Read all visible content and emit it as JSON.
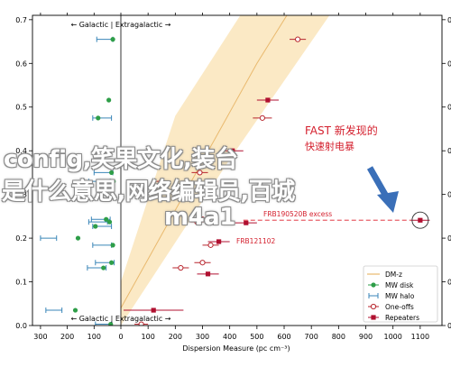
{
  "colors": {
    "dmz_fill": "#fbe8c2",
    "dmz_line": "#e9b96e",
    "mw_disk": "#2e9e48",
    "mw_halo": "#3a86b8",
    "one_off": "#b8262e",
    "repeater": "#b01030",
    "annotation": "#d4202e",
    "arrow": "#3a6fb8"
  },
  "overlay": {
    "line1": "config,笑果文化,装台",
    "line2": "是什么意思,网络编辑员,百城",
    "line3": "m4a1"
  },
  "chart_data": {
    "type": "scatter",
    "xlabel": "Dispersion Measure (pc cm⁻³)",
    "ylabel": "",
    "xlim": [
      -330,
      1180
    ],
    "ylim": [
      0,
      0.71
    ],
    "x_scale": "symlog",
    "xticks": [
      -300,
      -200,
      -100,
      0,
      100,
      200,
      300,
      400,
      500,
      600,
      700,
      800,
      900,
      1000,
      1100
    ],
    "xtick_labels": [
      "300",
      "200",
      "100",
      "0",
      "100",
      "200",
      "300",
      "400",
      "500",
      "600",
      "700",
      "800",
      "900",
      "1000",
      "1100"
    ],
    "yticks": [
      0.0,
      0.1,
      0.2,
      0.3,
      0.4,
      0.5,
      0.6,
      0.7
    ],
    "ytick_labels": [
      "0.0",
      "0.1",
      "0.2",
      "0.3",
      "0.4",
      "0.5",
      "0.6",
      "0.7"
    ],
    "top_label": "← Galactic | Extragalactic →",
    "bottom_label": "← Galactic | Extragalactic →",
    "legend": {
      "position": "lower-right",
      "entries": [
        "DM-z",
        "MW disk",
        "MW halo",
        "One-offs",
        "Repeaters"
      ]
    },
    "mw_disk": [
      {
        "dm": -30,
        "y": 0.655
      },
      {
        "dm": -45,
        "y": 0.516
      },
      {
        "dm": -85,
        "y": 0.475
      },
      {
        "dm": -35,
        "y": 0.35
      },
      {
        "dm": -28,
        "y": 0.33
      },
      {
        "dm": -55,
        "y": 0.243
      },
      {
        "dm": -42,
        "y": 0.237
      },
      {
        "dm": -95,
        "y": 0.227
      },
      {
        "dm": -160,
        "y": 0.2
      },
      {
        "dm": -30,
        "y": 0.184
      },
      {
        "dm": -35,
        "y": 0.144
      },
      {
        "dm": -65,
        "y": 0.132
      },
      {
        "dm": -170,
        "y": 0.035
      },
      {
        "dm": -38,
        "y": 0.003
      }
    ],
    "mw_halo": [
      {
        "dm": -60,
        "xerr": 30,
        "y": 0.655
      },
      {
        "dm": -70,
        "xerr": 35,
        "y": 0.475
      },
      {
        "dm": -65,
        "xerr": 35,
        "y": 0.35
      },
      {
        "dm": -80,
        "xerr": 40,
        "y": 0.33
      },
      {
        "dm": -75,
        "xerr": 35,
        "y": 0.243
      },
      {
        "dm": -85,
        "xerr": 35,
        "y": 0.237
      },
      {
        "dm": -70,
        "xerr": 35,
        "y": 0.227
      },
      {
        "dm": -270,
        "xerr": 30,
        "y": 0.2
      },
      {
        "dm": -70,
        "xerr": 35,
        "y": 0.184
      },
      {
        "dm": -60,
        "xerr": 35,
        "y": 0.144
      },
      {
        "dm": -90,
        "xerr": 35,
        "y": 0.132
      },
      {
        "dm": -250,
        "xerr": 30,
        "y": 0.035
      },
      {
        "dm": -65,
        "xerr": 30,
        "y": 0.003
      }
    ],
    "one_offs": [
      {
        "dm": 650,
        "xerr": 30,
        "y": 0.655
      },
      {
        "dm": 520,
        "xerr": 35,
        "y": 0.475
      },
      {
        "dm": 290,
        "xerr": 30,
        "y": 0.35
      },
      {
        "dm": 150,
        "xerr": 25,
        "y": 0.33
      },
      {
        "dm": 300,
        "xerr": 30,
        "y": 0.243
      },
      {
        "dm": 280,
        "xerr": 25,
        "y": 0.237
      },
      {
        "dm": 330,
        "xerr": 30,
        "y": 0.184
      },
      {
        "dm": 300,
        "xerr": 30,
        "y": 0.144
      },
      {
        "dm": 220,
        "xerr": 30,
        "y": 0.132
      },
      {
        "dm": 75,
        "xerr": 25,
        "y": 0.003
      }
    ],
    "repeaters": [
      {
        "dm": 540,
        "xerr": 40,
        "y": 0.516
      },
      {
        "dm": 410,
        "xerr": 40,
        "y": 0.4
      },
      {
        "dm": 460,
        "xerr": 40,
        "y": 0.235
      },
      {
        "dm": 360,
        "xerr": 40,
        "y": 0.192
      },
      {
        "dm": 320,
        "xerr": 40,
        "y": 0.118
      },
      {
        "dm": 120,
        "xerr": 110,
        "y": 0.035
      },
      {
        "dm": 1100,
        "xerr": 35,
        "y": 0.241
      }
    ],
    "dmz_band": {
      "z_at_dm0": 0.04,
      "lower": [
        [
          0,
          0.0
        ],
        [
          400,
          0.38
        ],
        [
          800,
          0.74
        ]
      ],
      "upper": [
        [
          0,
          0.1
        ],
        [
          200,
          0.48
        ],
        [
          470,
          0.74
        ]
      ],
      "center": [
        [
          0,
          0.04
        ],
        [
          500,
          0.6
        ],
        [
          640,
          0.74
        ]
      ]
    },
    "annotations": [
      {
        "text": "FRB190520B excess",
        "dm": 1100,
        "y": 0.241
      },
      {
        "text": "FRB121102",
        "dm": 360,
        "y": 0.192
      },
      {
        "text": "FAST 新发现的",
        "dm": 900,
        "y": 0.44
      },
      {
        "text": "快速射电暴",
        "dm": 900,
        "y": 0.41
      }
    ]
  }
}
